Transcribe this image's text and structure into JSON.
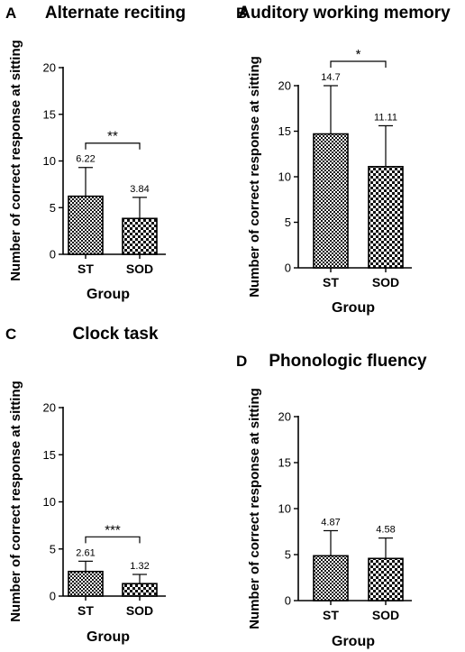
{
  "chart_data": [
    {
      "type": "bar",
      "panel": "A",
      "title": "Alternate reciting",
      "xlabel": "Group",
      "ylabel": "Number of correct response at sitting",
      "categories": [
        "ST",
        "SOD"
      ],
      "values": [
        6.22,
        3.84
      ],
      "value_labels": [
        "6.22",
        "3.84"
      ],
      "error_upper": [
        9.3,
        6.1
      ],
      "significance": "**",
      "ylim": [
        0,
        20
      ],
      "yticks": [
        0,
        5,
        10,
        15,
        20
      ],
      "grid": false
    },
    {
      "type": "bar",
      "panel": "B",
      "title": "Auditory working memory",
      "xlabel": "Group",
      "ylabel": "Number of correct response at sitting",
      "categories": [
        "ST",
        "SOD"
      ],
      "values": [
        14.7,
        11.11
      ],
      "value_labels": [
        "14.7",
        "11.11"
      ],
      "error_upper": [
        20.0,
        15.6
      ],
      "significance": "*",
      "ylim": [
        0,
        20
      ],
      "yticks": [
        0,
        5,
        10,
        15,
        20
      ],
      "grid": false
    },
    {
      "type": "bar",
      "panel": "C",
      "title": "Clock task",
      "xlabel": "Group",
      "ylabel": "Number of correct response at sitting",
      "categories": [
        "ST",
        "SOD"
      ],
      "values": [
        2.61,
        1.32
      ],
      "value_labels": [
        "2.61",
        "1.32"
      ],
      "error_upper": [
        3.7,
        2.3
      ],
      "significance": "***",
      "ylim": [
        0,
        20
      ],
      "yticks": [
        0,
        5,
        10,
        15,
        20
      ],
      "grid": false
    },
    {
      "type": "bar",
      "panel": "D",
      "title": "Phonologic fluency",
      "xlabel": "Group",
      "ylabel": "Number of correct response at sitting",
      "categories": [
        "ST",
        "SOD"
      ],
      "values": [
        4.87,
        4.58
      ],
      "value_labels": [
        "4.87",
        "4.58"
      ],
      "error_upper": [
        7.6,
        6.8
      ],
      "significance": "",
      "ylim": [
        0,
        20
      ],
      "yticks": [
        0,
        5,
        10,
        15,
        20
      ],
      "grid": false
    }
  ]
}
